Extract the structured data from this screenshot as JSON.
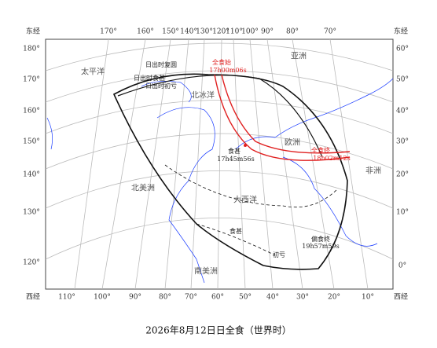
{
  "top_labels": [
    "东经",
    "170°",
    "160°",
    "150°",
    "140°",
    "130°",
    "120°",
    "110°",
    "100°",
    "90°",
    "80°",
    "70°",
    "东经"
  ],
  "bottom_labels": [
    "西经",
    "110°",
    "100°",
    "90°",
    "80°",
    "70°",
    "60°",
    "50°",
    "40°",
    "30°",
    "20°",
    "10°",
    "西经"
  ],
  "left_labels": [
    "180°",
    "170°",
    "160°",
    "150°",
    "140°",
    "130°",
    "120°"
  ],
  "right_labels": [
    "60°",
    "50°",
    "40°",
    "30°",
    "20°",
    "10°",
    "0°"
  ],
  "regions": [
    "太平洋",
    "北冰洋",
    "亚洲",
    "欧洲",
    "非洲",
    "北美洲",
    "大西洋",
    "南美洲"
  ],
  "annotations": {
    "totality_start": "全食始",
    "totality_start_time": "17h00m06s",
    "totality_end": "全食终",
    "totality_end_time": "18h02m12s",
    "greatest": "食甚",
    "greatest_time": "17h45m56s",
    "partial_end": "偏食终",
    "partial_end_time": "19h57m59s"
  },
  "curve_labels": [
    "日出时复圆",
    "日出时食甚",
    "日出时初亏",
    "食甚",
    "初亏"
  ],
  "caption": "2026年8月12日日全食（世界时）"
}
